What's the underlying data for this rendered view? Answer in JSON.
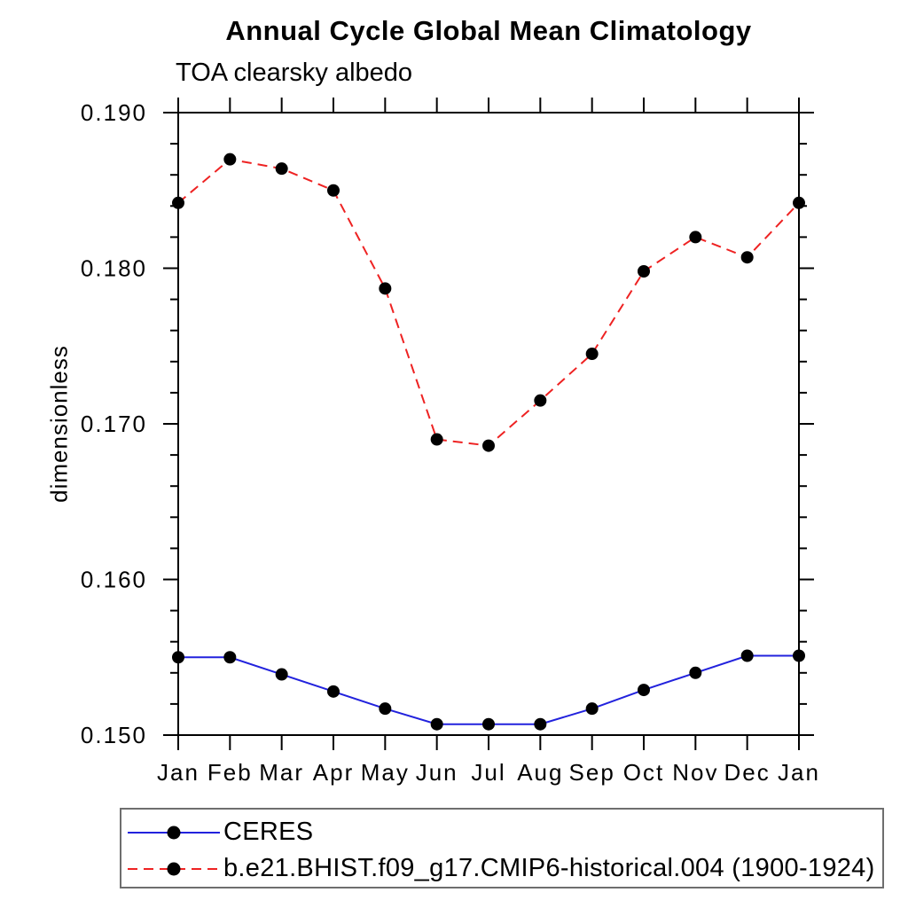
{
  "chart": {
    "title": "Annual Cycle Global Mean Climatology",
    "subtitle": "TOA clearsky albedo",
    "ylabel": "dimensionless"
  },
  "chart_data": {
    "type": "line",
    "title": "Annual Cycle Global Mean Climatology",
    "subtitle": "TOA clearsky albedo",
    "xlabel": "",
    "ylabel": "dimensionless",
    "categories": [
      "Jan",
      "Feb",
      "Mar",
      "Apr",
      "May",
      "Jun",
      "Jul",
      "Aug",
      "Sep",
      "Oct",
      "Nov",
      "Dec",
      "Jan"
    ],
    "ylim": [
      0.15,
      0.19
    ],
    "ytick_labels": [
      "0.150",
      "0.160",
      "0.170",
      "0.180",
      "0.190"
    ],
    "ytick_major_step": 0.01,
    "ytick_minor_step": 0.002,
    "grid": false,
    "legend_position": "bottom-left-box",
    "axis_color": "#000000",
    "series": [
      {
        "name": "CERES",
        "color": "#2222dd",
        "line_style": "solid",
        "marker": "filled-circle",
        "marker_color": "#000000",
        "values": [
          0.155,
          0.155,
          0.1539,
          0.1528,
          0.1517,
          0.1507,
          0.1507,
          0.1507,
          0.1517,
          0.1529,
          0.154,
          0.1551,
          0.1551
        ]
      },
      {
        "name": "b.e21.BHIST.f09_g17.CMIP6-historical.004 (1900-1924)",
        "color": "#ee2222",
        "line_style": "dashed",
        "marker": "filled-circle",
        "marker_color": "#000000",
        "values": [
          0.1842,
          0.187,
          0.1864,
          0.185,
          0.1787,
          0.169,
          0.1686,
          0.1715,
          0.1745,
          0.1798,
          0.182,
          0.1807,
          0.1842
        ]
      }
    ]
  }
}
